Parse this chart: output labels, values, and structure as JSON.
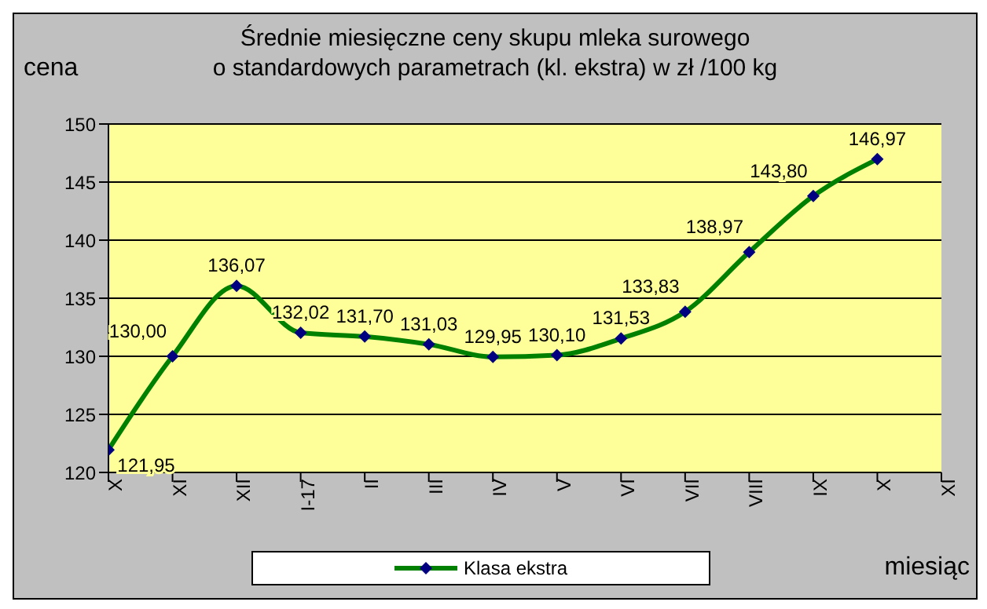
{
  "chart_data": {
    "type": "line",
    "title": "Średnie miesięczne ceny skupu mleka surowego\no standardowych parametrach (kl. ekstra) w zł /100 kg",
    "ylabel": "cena",
    "xlabel": "miesiąc",
    "categories": [
      "X",
      "XI",
      "XII",
      "I-17",
      "II",
      "III",
      "IV",
      "V",
      "VI",
      "VII",
      "VIII",
      "IX",
      "X",
      "XI"
    ],
    "series": [
      {
        "name": "Klasa ekstra",
        "color": "#008000",
        "values": [
          121.95,
          130.0,
          136.07,
          132.02,
          131.7,
          131.03,
          129.95,
          130.1,
          131.53,
          133.83,
          138.97,
          143.8,
          146.97,
          null
        ],
        "value_labels": [
          "121,95",
          "130,00",
          "136,07",
          "132,02",
          "131,70",
          "131,03",
          "129,95",
          "130,10",
          "131,53",
          "133,83",
          "138,97",
          "143,80",
          "146,97",
          null
        ]
      }
    ],
    "ylim": [
      120,
      150
    ],
    "yticks": [
      120,
      125,
      130,
      135,
      140,
      145,
      150
    ],
    "grid": "y",
    "legend": "bottom",
    "marker": "diamond",
    "line_style": "solid"
  }
}
